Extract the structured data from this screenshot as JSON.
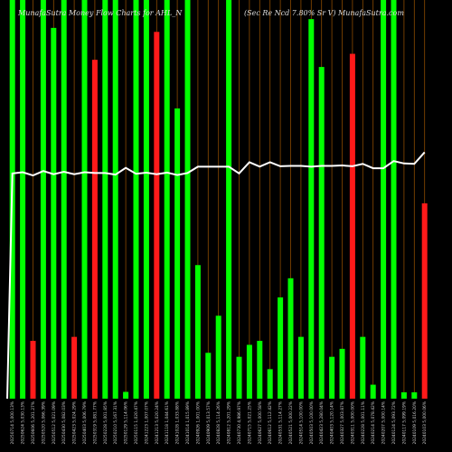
{
  "chart_data": {
    "type": "bar",
    "title_left": "MunafaSutra  Money Flow  Charts for AHL_N",
    "title_right": "(Sec Re   Ncd 7.80% Sr V) MunafaSutra.com",
    "overlay": "line",
    "colors": {
      "up": "#00ff00",
      "down": "#ff1a1a",
      "line": "#ffffff",
      "grid": "#8b4a00",
      "background": "#000000"
    },
    "ylim": [
      0,
      100
    ],
    "x": [
      "20250714 5,000.13%",
      "20250624 5,030.13%",
      "20250606 5,201.27%",
      "20250520 5,066.39%",
      "20250512 5,021.09%",
      "20250430 5,082.03%",
      "20250423 5,024.29%",
      "20250403 5,006.79%",
      "20250319 5,081.77%",
      "20250228 5,001.85%",
      "20250210 5,167.31%",
      "20250129 5,114.06%",
      "20250115 1,020.47%",
      "20241223 1,007.07%",
      "20241213 5,020.24%",
      "20241118 1,044.61%",
      "20241028 1,033.88%",
      "20241014 1,015.89%",
      "20240926 1,001.00%",
      "20240909 5,013.57%",
      "20240828 5,114.26%",
      "20240812 5,201.29%",
      "20240730 4,986.97%",
      "20240715 5,021.25%",
      "20240627 5,000.58%",
      "20240612 5,112.42%",
      "20240531 5,114.27%",
      "20240521 5,000.22%",
      "20240514 5,100.00%",
      "20240503 5,100.00%",
      "20240423 5,280.04%",
      "20240403 5,120.14%",
      "20240327 5,003.87%",
      "20240311 5,000.00%",
      "20240228 5,001.11%",
      "20240214 5,078.42%",
      "20240207 5,000.14%",
      "20240124 5,093.72%",
      "20240117 5,099.19%",
      "20240109 5,016.20%",
      "20240103 5,000.06%"
    ],
    "values": [
      100,
      100,
      14.5,
      100,
      93,
      100,
      15.5,
      100,
      85,
      100,
      100,
      1.7,
      100,
      100,
      92,
      100,
      72.8,
      100,
      33.5,
      11.5,
      20.8,
      100,
      10.5,
      13.5,
      14.5,
      7.4,
      25.4,
      30.2,
      15.5,
      95.2,
      83.2,
      10.5,
      12.5,
      86.5,
      15.5,
      3.5,
      100,
      100,
      1.6,
      1.6,
      49
    ],
    "direction": [
      "up",
      "up",
      "down",
      "up",
      "up",
      "up",
      "down",
      "up",
      "down",
      "up",
      "up",
      "up",
      "up",
      "up",
      "down",
      "up",
      "up",
      "up",
      "up",
      "up",
      "up",
      "up",
      "up",
      "up",
      "up",
      "up",
      "up",
      "up",
      "up",
      "up",
      "up",
      "up",
      "up",
      "down",
      "up",
      "up",
      "up",
      "up",
      "up",
      "up",
      "down"
    ],
    "line_values": [
      56.5,
      56.8,
      56,
      57.1,
      56.3,
      56.9,
      56.3,
      56.8,
      56.6,
      56.6,
      56.2,
      57.9,
      56.4,
      56.7,
      56.3,
      56.7,
      56.1,
      56.6,
      58.2,
      58.2,
      58.2,
      58.2,
      56.5,
      59.3,
      58.2,
      59.3,
      58.3,
      58.4,
      58.4,
      58.2,
      58.4,
      58.4,
      58.5,
      58.3,
      58.9,
      57.8,
      57.8,
      59.6,
      59,
      58.9,
      61.8
    ],
    "line_start": 0,
    "grid": "vertical"
  }
}
